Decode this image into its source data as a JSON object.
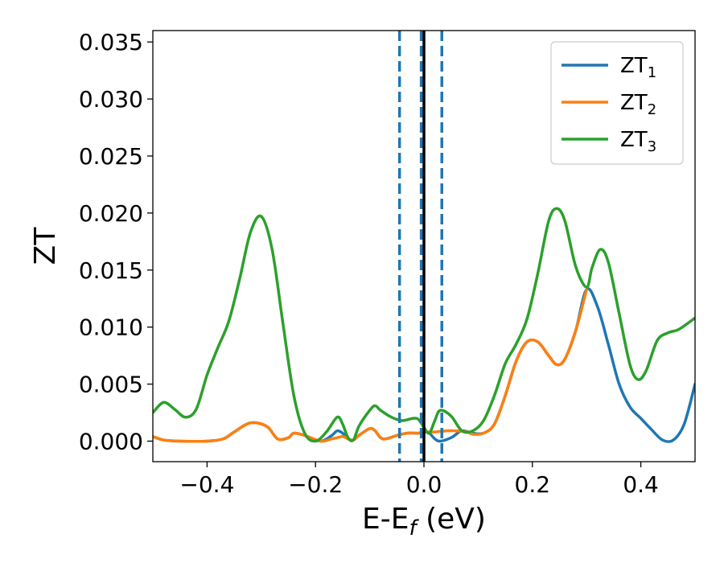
{
  "chart_data": {
    "type": "line",
    "xlabel": "E-E",
    "xlabel_subscript": "f",
    "xlabel_unit": " (eV)",
    "ylabel": "ZT",
    "xlim": [
      -0.5,
      0.5
    ],
    "ylim": [
      -0.0018,
      0.036
    ],
    "x_ticks": [
      -0.4,
      -0.2,
      0.0,
      0.2,
      0.4
    ],
    "x_tick_labels": [
      "−0.4",
      "−0.2",
      "0.0",
      "0.2",
      "0.4"
    ],
    "y_ticks": [
      0.0,
      0.005,
      0.01,
      0.015,
      0.02,
      0.025,
      0.03,
      0.035
    ],
    "y_tick_labels": [
      "0.000",
      "0.005",
      "0.010",
      "0.015",
      "0.020",
      "0.025",
      "0.030",
      "0.035"
    ],
    "grid": false,
    "legend_position": "top-right",
    "vertical_lines": [
      {
        "x": -0.045,
        "style": "dashed",
        "color": "#1f77b4"
      },
      {
        "x": -0.005,
        "style": "dashed",
        "color": "#1f77b4"
      },
      {
        "x": 0.033,
        "style": "dashed",
        "color": "#1f77b4"
      },
      {
        "x": 0.0,
        "style": "solid",
        "color": "#000000"
      }
    ],
    "series": [
      {
        "name": "ZT",
        "subscript": "1",
        "color": "#1f77b4",
        "points": [
          [
            -0.5,
            0.0004
          ],
          [
            -0.48,
            0.0001
          ],
          [
            -0.45,
            0.0
          ],
          [
            -0.4,
            0.0
          ],
          [
            -0.37,
            0.0002
          ],
          [
            -0.35,
            0.0008
          ],
          [
            -0.32,
            0.0016
          ],
          [
            -0.29,
            0.0013
          ],
          [
            -0.27,
            0.0002
          ],
          [
            -0.25,
            0.0003
          ],
          [
            -0.24,
            0.0007
          ],
          [
            -0.22,
            0.0005
          ],
          [
            -0.19,
            0.0
          ],
          [
            -0.17,
            0.0005
          ],
          [
            -0.16,
            0.0009
          ],
          [
            -0.15,
            0.0007
          ],
          [
            -0.14,
            0.0002
          ],
          [
            -0.13,
            0.0001
          ],
          [
            -0.12,
            0.0005
          ],
          [
            -0.1,
            0.0011
          ],
          [
            -0.09,
            0.0009
          ],
          [
            -0.08,
            0.0003
          ],
          [
            -0.07,
            0.0002
          ],
          [
            -0.05,
            0.0005
          ],
          [
            -0.03,
            0.0007
          ],
          [
            -0.01,
            0.0007
          ],
          [
            0.0,
            0.0008
          ],
          [
            0.01,
            0.0007
          ],
          [
            0.02,
            0.0002
          ],
          [
            0.03,
            0.0
          ],
          [
            0.05,
            0.0003
          ],
          [
            0.07,
            0.0009
          ],
          [
            0.09,
            0.0007
          ],
          [
            0.11,
            0.0007
          ],
          [
            0.13,
            0.0015
          ],
          [
            0.15,
            0.004
          ],
          [
            0.17,
            0.007
          ],
          [
            0.19,
            0.0087
          ],
          [
            0.21,
            0.0087
          ],
          [
            0.23,
            0.0075
          ],
          [
            0.245,
            0.0067
          ],
          [
            0.26,
            0.0072
          ],
          [
            0.28,
            0.0097
          ],
          [
            0.3,
            0.0133
          ],
          [
            0.32,
            0.0118
          ],
          [
            0.34,
            0.0085
          ],
          [
            0.36,
            0.005
          ],
          [
            0.38,
            0.003
          ],
          [
            0.4,
            0.002
          ],
          [
            0.42,
            0.001
          ],
          [
            0.44,
            0.0001
          ],
          [
            0.46,
            0.0001
          ],
          [
            0.48,
            0.0015
          ],
          [
            0.5,
            0.005
          ]
        ]
      },
      {
        "name": "ZT",
        "subscript": "2",
        "color": "#ff7f0e",
        "points": [
          [
            -0.5,
            0.0004
          ],
          [
            -0.48,
            0.0001
          ],
          [
            -0.45,
            0.0
          ],
          [
            -0.4,
            0.0
          ],
          [
            -0.37,
            0.0002
          ],
          [
            -0.35,
            0.0008
          ],
          [
            -0.32,
            0.0016
          ],
          [
            -0.29,
            0.0013
          ],
          [
            -0.27,
            0.0002
          ],
          [
            -0.25,
            0.0003
          ],
          [
            -0.24,
            0.0007
          ],
          [
            -0.22,
            0.0005
          ],
          [
            -0.19,
            0.0
          ],
          [
            -0.17,
            0.0002
          ],
          [
            -0.16,
            0.0003
          ],
          [
            -0.15,
            0.0004
          ],
          [
            -0.14,
            0.0002
          ],
          [
            -0.13,
            0.0001
          ],
          [
            -0.12,
            0.0005
          ],
          [
            -0.1,
            0.0011
          ],
          [
            -0.09,
            0.0009
          ],
          [
            -0.08,
            0.0003
          ],
          [
            -0.07,
            0.0002
          ],
          [
            -0.05,
            0.0005
          ],
          [
            -0.03,
            0.0007
          ],
          [
            -0.01,
            0.0007
          ],
          [
            0.0,
            0.0008
          ],
          [
            0.02,
            0.0008
          ],
          [
            0.04,
            0.0009
          ],
          [
            0.06,
            0.0009
          ],
          [
            0.08,
            0.0008
          ],
          [
            0.09,
            0.0006
          ],
          [
            0.11,
            0.0007
          ],
          [
            0.13,
            0.0015
          ],
          [
            0.15,
            0.004
          ],
          [
            0.17,
            0.007
          ],
          [
            0.19,
            0.0087
          ],
          [
            0.21,
            0.0087
          ],
          [
            0.23,
            0.0075
          ],
          [
            0.245,
            0.0067
          ],
          [
            0.26,
            0.0072
          ],
          [
            0.28,
            0.0097
          ],
          [
            0.3,
            0.0133
          ]
        ]
      },
      {
        "name": "ZT",
        "subscript": "3",
        "color": "#2ca02c",
        "points": [
          [
            -0.5,
            0.0025
          ],
          [
            -0.48,
            0.0034
          ],
          [
            -0.46,
            0.0028
          ],
          [
            -0.44,
            0.0021
          ],
          [
            -0.42,
            0.0028
          ],
          [
            -0.4,
            0.0058
          ],
          [
            -0.38,
            0.0082
          ],
          [
            -0.36,
            0.0105
          ],
          [
            -0.34,
            0.0142
          ],
          [
            -0.32,
            0.0183
          ],
          [
            -0.3,
            0.0197
          ],
          [
            -0.28,
            0.0168
          ],
          [
            -0.26,
            0.0103
          ],
          [
            -0.24,
            0.004
          ],
          [
            -0.22,
            0.0007
          ],
          [
            -0.2,
            0.0
          ],
          [
            -0.18,
            0.0008
          ],
          [
            -0.16,
            0.0021
          ],
          [
            -0.15,
            0.0015
          ],
          [
            -0.14,
            0.0003
          ],
          [
            -0.13,
            0.0001
          ],
          [
            -0.12,
            0.0013
          ],
          [
            -0.1,
            0.0027
          ],
          [
            -0.09,
            0.0031
          ],
          [
            -0.08,
            0.0027
          ],
          [
            -0.06,
            0.0021
          ],
          [
            -0.04,
            0.0018
          ],
          [
            -0.02,
            0.002
          ],
          [
            -0.01,
            0.0019
          ],
          [
            0.0,
            0.0012
          ],
          [
            0.01,
            0.0007
          ],
          [
            0.02,
            0.0018
          ],
          [
            0.03,
            0.0027
          ],
          [
            0.05,
            0.0022
          ],
          [
            0.07,
            0.0009
          ],
          [
            0.09,
            0.0009
          ],
          [
            0.11,
            0.0018
          ],
          [
            0.13,
            0.004
          ],
          [
            0.15,
            0.0068
          ],
          [
            0.17,
            0.0085
          ],
          [
            0.19,
            0.0107
          ],
          [
            0.21,
            0.0147
          ],
          [
            0.23,
            0.0193
          ],
          [
            0.245,
            0.0204
          ],
          [
            0.26,
            0.0193
          ],
          [
            0.28,
            0.0153
          ],
          [
            0.3,
            0.0135
          ],
          [
            0.31,
            0.0152
          ],
          [
            0.325,
            0.0168
          ],
          [
            0.34,
            0.0157
          ],
          [
            0.36,
            0.0112
          ],
          [
            0.38,
            0.0067
          ],
          [
            0.395,
            0.0054
          ],
          [
            0.41,
            0.0062
          ],
          [
            0.43,
            0.0088
          ],
          [
            0.45,
            0.0095
          ],
          [
            0.47,
            0.0098
          ],
          [
            0.5,
            0.0108
          ]
        ]
      }
    ]
  }
}
